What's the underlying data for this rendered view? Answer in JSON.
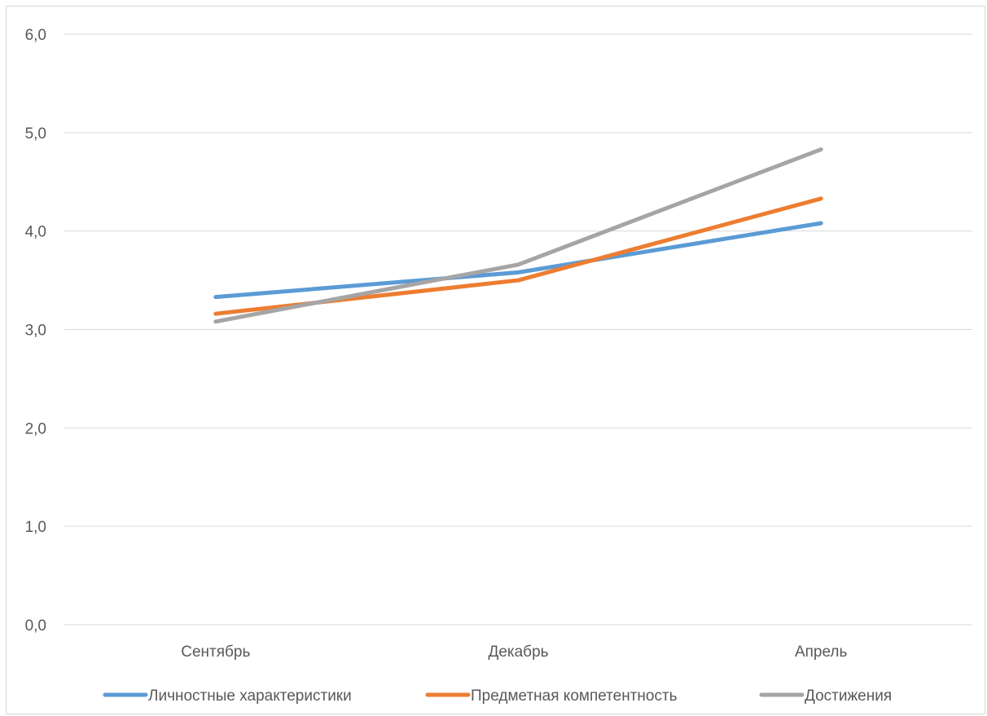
{
  "chart_data": {
    "type": "line",
    "title": "",
    "xlabel": "",
    "ylabel": "",
    "categories": [
      "Сентябрь",
      "Декабрь",
      "Апрель"
    ],
    "y_ticks": [
      "0,0",
      "1,0",
      "2,0",
      "3,0",
      "4,0",
      "5,0",
      "6,0"
    ],
    "ylim": [
      0,
      6
    ],
    "grid": true,
    "legend_position": "bottom",
    "series": [
      {
        "name": "Личностные характеристики",
        "color": "#5b9bd5",
        "values": [
          3.33,
          3.58,
          4.08
        ]
      },
      {
        "name": "Предметная компетентность",
        "color": "#ed7d31",
        "values": [
          3.16,
          3.5,
          4.33
        ]
      },
      {
        "name": "Достижения",
        "color": "#a5a5a5",
        "values": [
          3.08,
          3.66,
          4.83
        ]
      }
    ]
  }
}
